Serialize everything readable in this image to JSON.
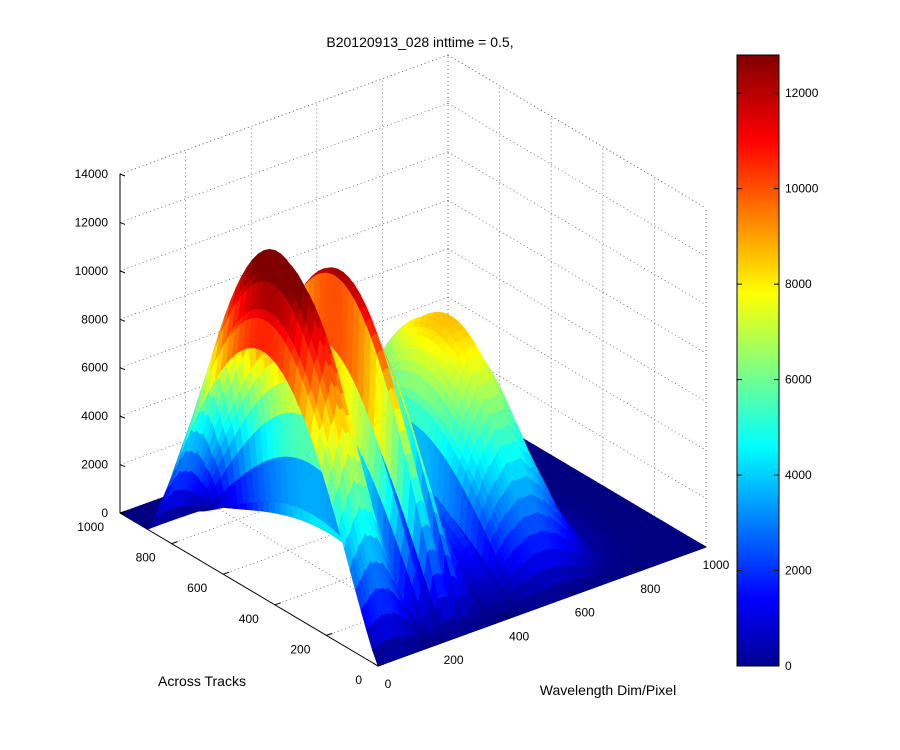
{
  "chart_data": {
    "type": "surface",
    "title": "B20120913_028 inttime = 0.5,",
    "xlabel": "Wavelength Dim/Pixel",
    "ylabel": "Across Tracks",
    "zlabel": "",
    "x_range": [
      0,
      1000
    ],
    "y_range": [
      0,
      1000
    ],
    "zlim": [
      0,
      14000
    ],
    "x_ticks": [
      "0",
      "200",
      "400",
      "600",
      "800",
      "1000"
    ],
    "y_ticks": [
      "0",
      "200",
      "400",
      "600",
      "800",
      "1000"
    ],
    "z_ticks": [
      "0",
      "2000",
      "4000",
      "6000",
      "8000",
      "10000",
      "12000",
      "14000"
    ],
    "colorbar": {
      "colormap": "jet",
      "range": [
        0,
        12800
      ],
      "ticks": [
        "0",
        "2000",
        "4000",
        "6000",
        "8000",
        "10000",
        "12000"
      ]
    },
    "grid": true,
    "peaks_approx": [
      {
        "wavelength_pixel": 50,
        "value": 14000
      },
      {
        "wavelength_pixel": 250,
        "value": 12600
      },
      {
        "wavelength_pixel": 550,
        "value": 9000
      }
    ]
  }
}
